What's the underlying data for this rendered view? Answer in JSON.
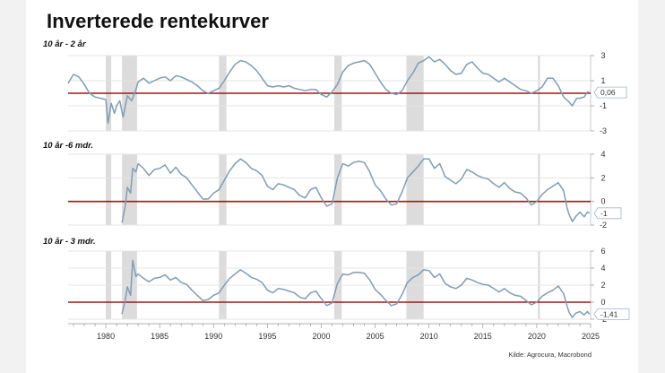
{
  "title": "Inverterede rentekurver",
  "source": "Kilde: Agrocura, Macrobond",
  "colors": {
    "line": "#7f9db5",
    "zero_line": "#a01818",
    "recession": "#dcdcdc",
    "grid": "#e4e4e4"
  },
  "chart_data": [
    {
      "type": "line",
      "title": "10 år - 2 år",
      "x_range": [
        1976.5,
        2025.0
      ],
      "ylim": [
        -3,
        3
      ],
      "yticks": [
        "3",
        "1",
        "-1",
        "-3"
      ],
      "xticks": [],
      "recessions": [
        [
          1980.0,
          1980.5
        ],
        [
          1981.5,
          1982.9
        ],
        [
          1990.5,
          1991.2
        ],
        [
          2001.2,
          2001.9
        ],
        [
          2007.9,
          2009.5
        ],
        [
          2020.1,
          2020.3
        ]
      ],
      "last_value_label": "0,06",
      "points": [
        [
          1976.5,
          0.8
        ],
        [
          1977,
          1.5
        ],
        [
          1977.5,
          1.3
        ],
        [
          1978,
          0.7
        ],
        [
          1978.5,
          0.0
        ],
        [
          1979,
          -0.3
        ],
        [
          1979.5,
          -0.4
        ],
        [
          1980,
          -0.5
        ],
        [
          1980.2,
          -2.4
        ],
        [
          1980.5,
          -0.8
        ],
        [
          1980.8,
          -1.6
        ],
        [
          1981,
          -1.0
        ],
        [
          1981.3,
          -0.6
        ],
        [
          1981.6,
          -1.9
        ],
        [
          1982,
          -0.2
        ],
        [
          1982.4,
          -0.6
        ],
        [
          1982.8,
          0.3
        ],
        [
          1983,
          0.9
        ],
        [
          1983.5,
          1.2
        ],
        [
          1984,
          0.8
        ],
        [
          1984.5,
          1.0
        ],
        [
          1985,
          1.2
        ],
        [
          1985.5,
          1.3
        ],
        [
          1986,
          1.0
        ],
        [
          1986.5,
          1.4
        ],
        [
          1987,
          1.3
        ],
        [
          1987.5,
          1.1
        ],
        [
          1988,
          0.9
        ],
        [
          1988.5,
          0.6
        ],
        [
          1989,
          0.2
        ],
        [
          1989.5,
          0.0
        ],
        [
          1990,
          0.2
        ],
        [
          1990.5,
          0.4
        ],
        [
          1991,
          1.0
        ],
        [
          1991.5,
          1.7
        ],
        [
          1992,
          2.3
        ],
        [
          1992.5,
          2.6
        ],
        [
          1993,
          2.5
        ],
        [
          1993.5,
          2.2
        ],
        [
          1994,
          1.8
        ],
        [
          1994.5,
          1.2
        ],
        [
          1995,
          0.6
        ],
        [
          1995.5,
          0.5
        ],
        [
          1996,
          0.6
        ],
        [
          1996.5,
          0.5
        ],
        [
          1997,
          0.6
        ],
        [
          1997.5,
          0.4
        ],
        [
          1998,
          0.3
        ],
        [
          1998.5,
          0.2
        ],
        [
          1999,
          0.3
        ],
        [
          1999.5,
          0.3
        ],
        [
          2000,
          -0.1
        ],
        [
          2000.5,
          -0.3
        ],
        [
          2001,
          0.1
        ],
        [
          2001.5,
          0.7
        ],
        [
          2002,
          1.7
        ],
        [
          2002.5,
          2.2
        ],
        [
          2003,
          2.4
        ],
        [
          2003.5,
          2.5
        ],
        [
          2004,
          2.6
        ],
        [
          2004.5,
          2.3
        ],
        [
          2005,
          1.6
        ],
        [
          2005.5,
          0.9
        ],
        [
          2006,
          0.3
        ],
        [
          2006.5,
          0.0
        ],
        [
          2007,
          -0.1
        ],
        [
          2007.5,
          0.2
        ],
        [
          2008,
          1.0
        ],
        [
          2008.5,
          1.6
        ],
        [
          2009,
          2.4
        ],
        [
          2009.5,
          2.6
        ],
        [
          2010,
          2.9
        ],
        [
          2010.5,
          2.5
        ],
        [
          2011,
          2.7
        ],
        [
          2011.5,
          2.3
        ],
        [
          2012,
          1.8
        ],
        [
          2012.5,
          1.5
        ],
        [
          2013,
          1.6
        ],
        [
          2013.5,
          2.3
        ],
        [
          2014,
          2.5
        ],
        [
          2014.5,
          2.0
        ],
        [
          2015,
          1.6
        ],
        [
          2015.5,
          1.5
        ],
        [
          2016,
          1.2
        ],
        [
          2016.5,
          0.9
        ],
        [
          2017,
          1.2
        ],
        [
          2017.5,
          0.9
        ],
        [
          2018,
          0.6
        ],
        [
          2018.5,
          0.3
        ],
        [
          2019,
          0.2
        ],
        [
          2019.5,
          0.0
        ],
        [
          2020,
          0.2
        ],
        [
          2020.5,
          0.5
        ],
        [
          2021,
          1.2
        ],
        [
          2021.5,
          1.2
        ],
        [
          2022,
          0.6
        ],
        [
          2022.5,
          -0.3
        ],
        [
          2023,
          -0.7
        ],
        [
          2023.3,
          -1.0
        ],
        [
          2023.7,
          -0.4
        ],
        [
          2024,
          -0.4
        ],
        [
          2024.4,
          -0.3
        ],
        [
          2024.7,
          0.1
        ],
        [
          2024.9,
          0.06
        ]
      ]
    },
    {
      "type": "line",
      "title": "10 år -6 mdr.",
      "x_range": [
        1976.5,
        2025.0
      ],
      "ylim": [
        -2,
        4
      ],
      "yticks": [
        "4",
        "2",
        "0",
        "-2"
      ],
      "xticks": [],
      "recessions": [
        [
          1980.0,
          1980.5
        ],
        [
          1981.5,
          1982.9
        ],
        [
          1990.5,
          1991.2
        ],
        [
          2001.2,
          2001.9
        ],
        [
          2007.9,
          2009.5
        ],
        [
          2020.1,
          2020.3
        ]
      ],
      "last_value_label": "-1",
      "points": [
        [
          1981.5,
          -1.8
        ],
        [
          1981.8,
          -0.4
        ],
        [
          1982,
          1.2
        ],
        [
          1982.3,
          0.7
        ],
        [
          1982.5,
          2.8
        ],
        [
          1982.8,
          2.5
        ],
        [
          1983,
          3.2
        ],
        [
          1983.5,
          2.8
        ],
        [
          1984,
          2.2
        ],
        [
          1984.5,
          2.7
        ],
        [
          1985,
          2.8
        ],
        [
          1985.5,
          3.1
        ],
        [
          1986,
          2.4
        ],
        [
          1986.5,
          2.9
        ],
        [
          1987,
          2.3
        ],
        [
          1987.5,
          2.0
        ],
        [
          1988,
          1.4
        ],
        [
          1988.5,
          0.8
        ],
        [
          1989,
          0.2
        ],
        [
          1989.5,
          0.2
        ],
        [
          1990,
          0.7
        ],
        [
          1990.5,
          1.0
        ],
        [
          1991,
          1.8
        ],
        [
          1991.5,
          2.6
        ],
        [
          1992,
          3.2
        ],
        [
          1992.5,
          3.6
        ],
        [
          1993,
          3.3
        ],
        [
          1993.5,
          2.8
        ],
        [
          1994,
          2.6
        ],
        [
          1994.5,
          2.2
        ],
        [
          1995,
          1.3
        ],
        [
          1995.5,
          1.0
        ],
        [
          1996,
          1.5
        ],
        [
          1996.5,
          1.4
        ],
        [
          1997,
          1.2
        ],
        [
          1997.5,
          1.0
        ],
        [
          1998,
          0.5
        ],
        [
          1998.5,
          0.3
        ],
        [
          1999,
          1.0
        ],
        [
          1999.5,
          1.2
        ],
        [
          2000,
          0.3
        ],
        [
          2000.5,
          -0.4
        ],
        [
          2001,
          -0.2
        ],
        [
          2001.5,
          2.0
        ],
        [
          2002,
          3.2
        ],
        [
          2002.5,
          3.0
        ],
        [
          2003,
          3.3
        ],
        [
          2003.5,
          3.4
        ],
        [
          2004,
          3.3
        ],
        [
          2004.5,
          2.5
        ],
        [
          2005,
          1.4
        ],
        [
          2005.5,
          0.9
        ],
        [
          2006,
          0.2
        ],
        [
          2006.5,
          -0.3
        ],
        [
          2007,
          -0.2
        ],
        [
          2007.5,
          0.8
        ],
        [
          2008,
          2.0
        ],
        [
          2008.5,
          2.5
        ],
        [
          2009,
          3.0
        ],
        [
          2009.5,
          3.6
        ],
        [
          2010,
          3.6
        ],
        [
          2010.5,
          2.8
        ],
        [
          2011,
          3.2
        ],
        [
          2011.5,
          2.1
        ],
        [
          2012,
          1.8
        ],
        [
          2012.5,
          1.5
        ],
        [
          2013,
          1.9
        ],
        [
          2013.5,
          2.7
        ],
        [
          2014,
          2.5
        ],
        [
          2014.5,
          2.2
        ],
        [
          2015,
          2.0
        ],
        [
          2015.5,
          1.9
        ],
        [
          2016,
          1.5
        ],
        [
          2016.5,
          1.2
        ],
        [
          2017,
          1.6
        ],
        [
          2017.5,
          1.1
        ],
        [
          2018,
          0.8
        ],
        [
          2018.5,
          0.7
        ],
        [
          2019,
          0.3
        ],
        [
          2019.5,
          -0.3
        ],
        [
          2020,
          0.0
        ],
        [
          2020.5,
          0.6
        ],
        [
          2021,
          1.0
        ],
        [
          2021.5,
          1.3
        ],
        [
          2022,
          1.6
        ],
        [
          2022.5,
          0.9
        ],
        [
          2022.8,
          -0.5
        ],
        [
          2023,
          -1.1
        ],
        [
          2023.3,
          -1.7
        ],
        [
          2023.6,
          -1.3
        ],
        [
          2024,
          -0.9
        ],
        [
          2024.4,
          -1.3
        ],
        [
          2024.7,
          -0.9
        ],
        [
          2024.9,
          -1.0
        ]
      ]
    },
    {
      "type": "line",
      "title": "10 år - 3 mdr.",
      "x_range": [
        1976.5,
        2025.0
      ],
      "ylim": [
        -2,
        6
      ],
      "yticks": [
        "6",
        "4",
        "2",
        "0",
        "-2"
      ],
      "xticks": [
        "1980",
        "1985",
        "1990",
        "1995",
        "2000",
        "2005",
        "2010",
        "2015",
        "2020",
        "2025"
      ],
      "recessions": [
        [
          1980.0,
          1980.5
        ],
        [
          1981.5,
          1982.9
        ],
        [
          1990.5,
          1991.2
        ],
        [
          2001.2,
          2001.9
        ],
        [
          2007.9,
          2009.5
        ],
        [
          2020.1,
          2020.3
        ]
      ],
      "last_value_label": "-1,41",
      "points": [
        [
          1981.5,
          -1.4
        ],
        [
          1981.8,
          0.2
        ],
        [
          1982,
          1.8
        ],
        [
          1982.3,
          0.8
        ],
        [
          1982.5,
          4.9
        ],
        [
          1982.8,
          3.0
        ],
        [
          1983,
          3.3
        ],
        [
          1983.5,
          2.8
        ],
        [
          1984,
          2.4
        ],
        [
          1984.5,
          2.8
        ],
        [
          1985,
          2.9
        ],
        [
          1985.5,
          3.2
        ],
        [
          1986,
          2.6
        ],
        [
          1986.5,
          2.9
        ],
        [
          1987,
          2.3
        ],
        [
          1987.5,
          2.1
        ],
        [
          1988,
          1.4
        ],
        [
          1988.5,
          0.8
        ],
        [
          1989,
          0.2
        ],
        [
          1989.5,
          0.3
        ],
        [
          1990,
          0.8
        ],
        [
          1990.5,
          1.1
        ],
        [
          1991,
          2.0
        ],
        [
          1991.5,
          2.8
        ],
        [
          1992,
          3.3
        ],
        [
          1992.5,
          3.8
        ],
        [
          1993,
          3.4
        ],
        [
          1993.5,
          2.9
        ],
        [
          1994,
          2.7
        ],
        [
          1994.5,
          2.3
        ],
        [
          1995,
          1.4
        ],
        [
          1995.5,
          1.1
        ],
        [
          1996,
          1.6
        ],
        [
          1996.5,
          1.5
        ],
        [
          1997,
          1.3
        ],
        [
          1997.5,
          1.1
        ],
        [
          1998,
          0.6
        ],
        [
          1998.5,
          0.4
        ],
        [
          1999,
          1.1
        ],
        [
          1999.5,
          1.3
        ],
        [
          2000,
          0.4
        ],
        [
          2000.5,
          -0.4
        ],
        [
          2001,
          -0.1
        ],
        [
          2001.5,
          2.2
        ],
        [
          2002,
          3.3
        ],
        [
          2002.5,
          3.2
        ],
        [
          2003,
          3.5
        ],
        [
          2003.5,
          3.5
        ],
        [
          2004,
          3.4
        ],
        [
          2004.5,
          2.6
        ],
        [
          2005,
          1.5
        ],
        [
          2005.5,
          0.9
        ],
        [
          2006,
          0.2
        ],
        [
          2006.5,
          -0.4
        ],
        [
          2007,
          -0.2
        ],
        [
          2007.5,
          0.9
        ],
        [
          2008,
          2.3
        ],
        [
          2008.5,
          2.9
        ],
        [
          2009,
          3.2
        ],
        [
          2009.5,
          3.8
        ],
        [
          2010,
          3.7
        ],
        [
          2010.5,
          2.9
        ],
        [
          2011,
          3.3
        ],
        [
          2011.5,
          2.2
        ],
        [
          2012,
          1.8
        ],
        [
          2012.5,
          1.6
        ],
        [
          2013,
          2.0
        ],
        [
          2013.5,
          2.8
        ],
        [
          2014,
          2.6
        ],
        [
          2014.5,
          2.3
        ],
        [
          2015,
          2.1
        ],
        [
          2015.5,
          2.0
        ],
        [
          2016,
          1.6
        ],
        [
          2016.5,
          1.2
        ],
        [
          2017,
          1.6
        ],
        [
          2017.5,
          1.1
        ],
        [
          2018,
          0.8
        ],
        [
          2018.5,
          0.7
        ],
        [
          2019,
          0.2
        ],
        [
          2019.5,
          -0.3
        ],
        [
          2020,
          0.0
        ],
        [
          2020.5,
          0.7
        ],
        [
          2021,
          1.1
        ],
        [
          2021.5,
          1.4
        ],
        [
          2022,
          1.9
        ],
        [
          2022.5,
          1.0
        ],
        [
          2022.8,
          -0.4
        ],
        [
          2023,
          -1.2
        ],
        [
          2023.3,
          -1.8
        ],
        [
          2023.6,
          -1.3
        ],
        [
          2024,
          -1.1
        ],
        [
          2024.4,
          -1.5
        ],
        [
          2024.7,
          -1.1
        ],
        [
          2024.9,
          -1.41
        ]
      ]
    }
  ]
}
